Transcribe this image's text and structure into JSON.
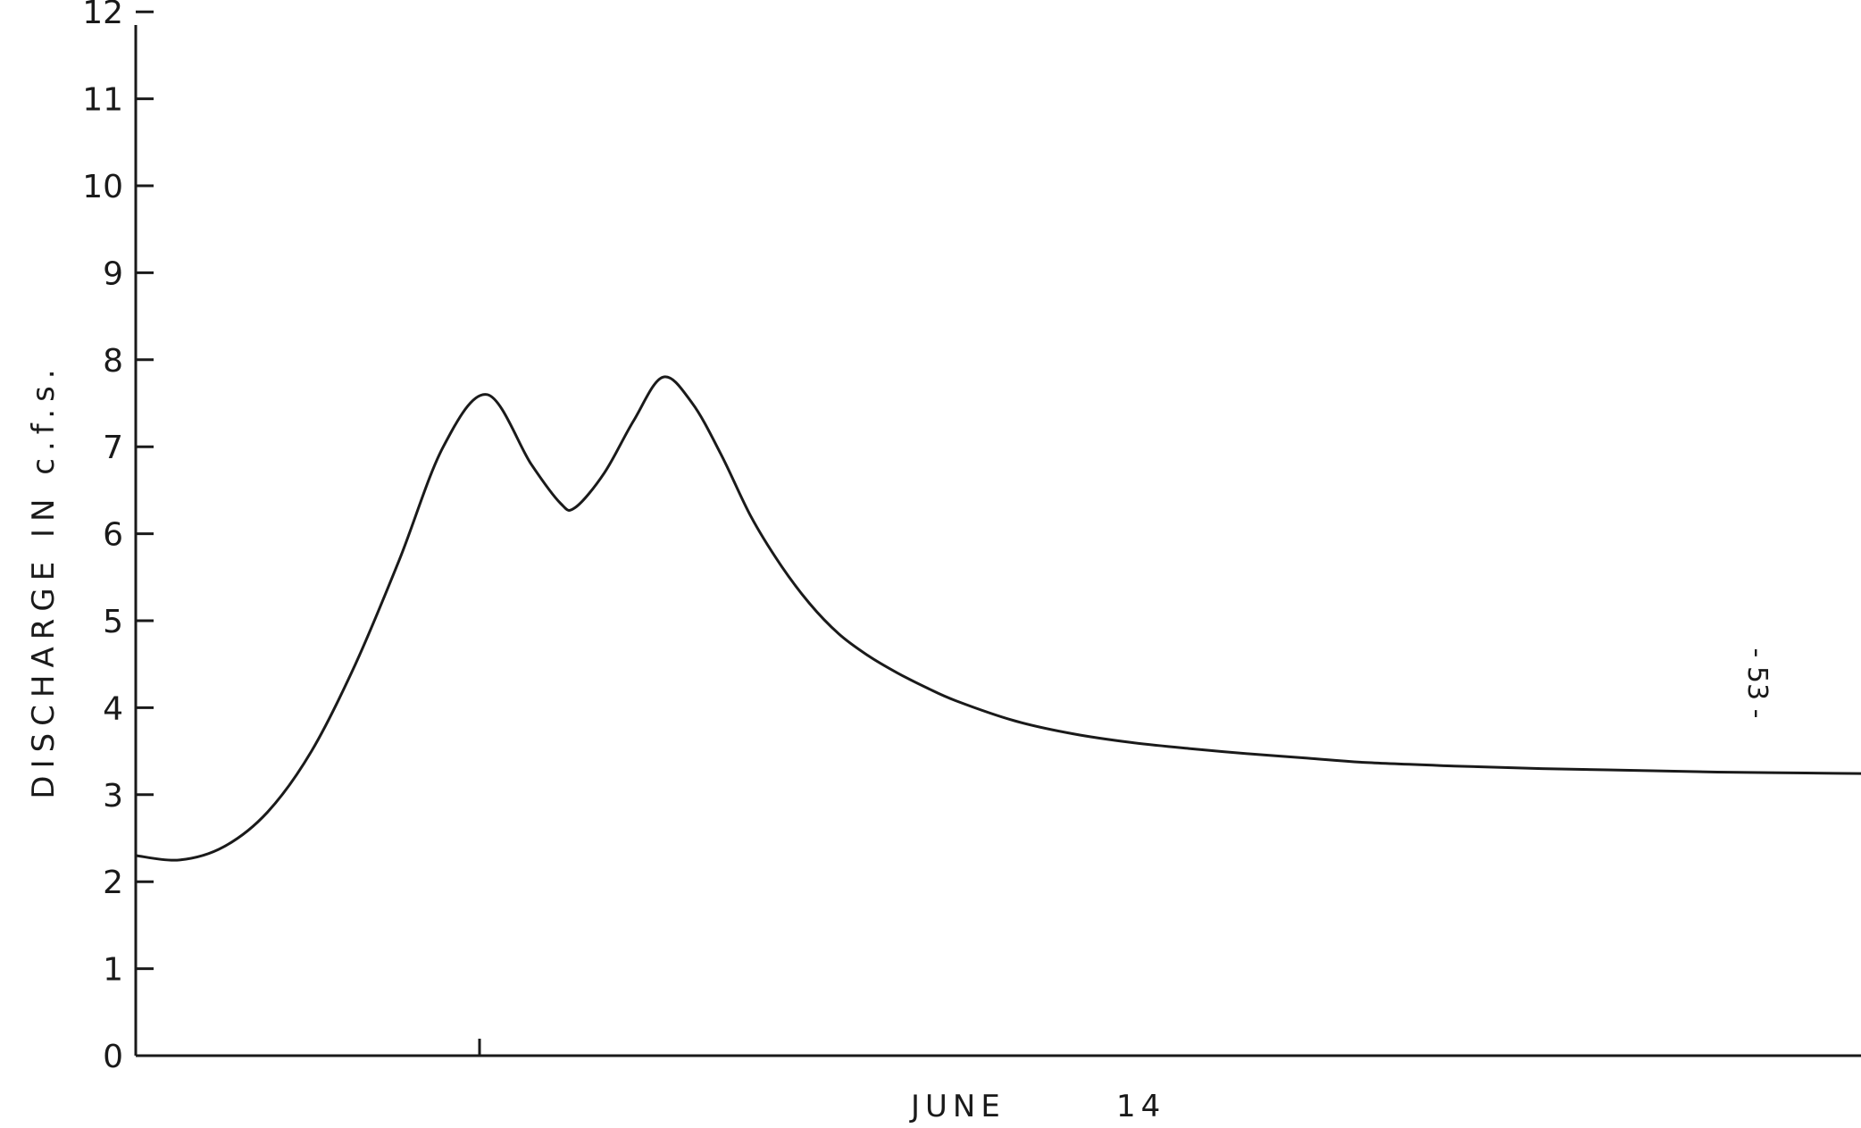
{
  "chart_data": {
    "type": "line",
    "title": "",
    "ylabel": "DISCHARGE  IN  c.f.s.",
    "xlabel_month": "JUNE",
    "xlabel_day": "14",
    "ylim": [
      0,
      12
    ],
    "yticks": [
      "0",
      "1",
      "2",
      "3",
      "4",
      "5",
      "6",
      "7",
      "8",
      "9",
      "10",
      "11",
      "12"
    ],
    "grid": false,
    "legend": "none",
    "x_units": "hours from start of record",
    "x": [
      0,
      1.5,
      3,
      4.5,
      6,
      7.5,
      9,
      10.5,
      12,
      13.5,
      14.5,
      15,
      16,
      17,
      18,
      19,
      20,
      21,
      22,
      23,
      24,
      25,
      26,
      27,
      28,
      30,
      32,
      34,
      36,
      38,
      40,
      42,
      45,
      48,
      51,
      54,
      57,
      60,
      63
    ],
    "values": [
      2.3,
      2.25,
      2.4,
      2.8,
      3.5,
      4.5,
      5.7,
      7.0,
      7.6,
      6.8,
      6.35,
      6.3,
      6.7,
      7.3,
      7.8,
      7.5,
      6.9,
      6.2,
      5.65,
      5.2,
      4.85,
      4.6,
      4.4,
      4.23,
      4.08,
      3.85,
      3.7,
      3.6,
      3.53,
      3.47,
      3.42,
      3.37,
      3.33,
      3.3,
      3.28,
      3.26,
      3.25,
      3.24,
      3.24
    ],
    "color": "#1a1a1a"
  },
  "page_number": "- 53 -"
}
